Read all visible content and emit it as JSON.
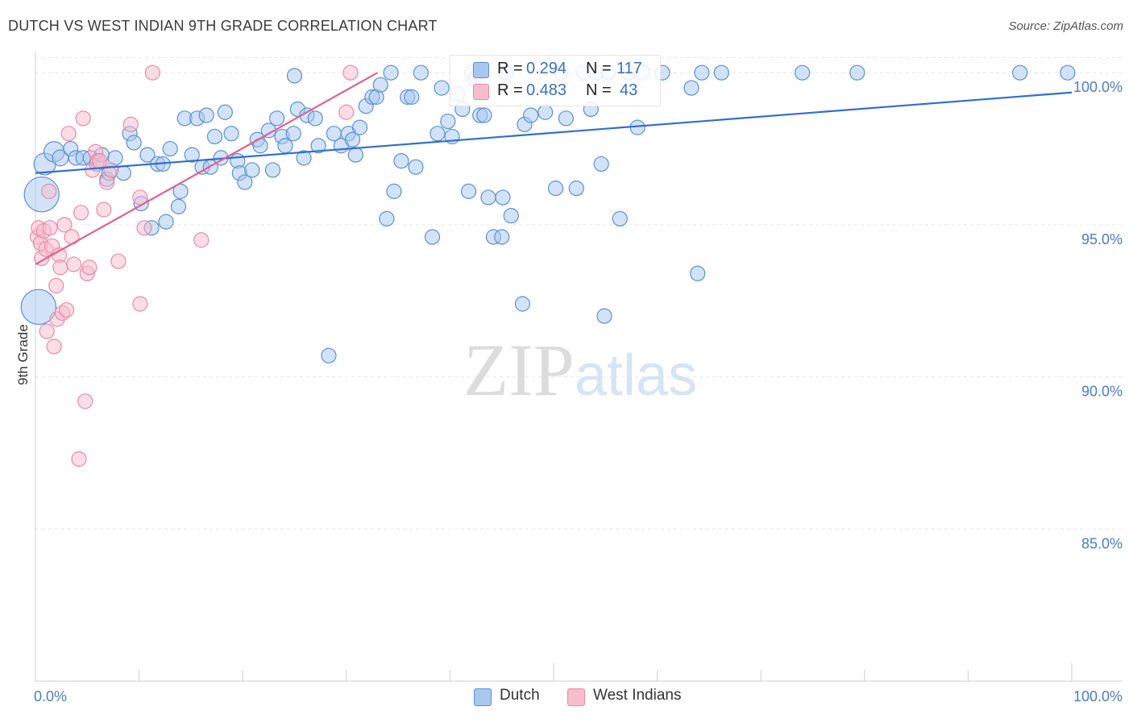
{
  "chart_data": {
    "type": "scatter",
    "title": "DUTCH VS WEST INDIAN 9TH GRADE CORRELATION CHART",
    "source": "Source: ZipAtlas.com",
    "xlabel": "",
    "ylabel": "9th Grade",
    "xlim": [
      0,
      100
    ],
    "ylim": [
      80.0,
      100.8
    ],
    "x_tick_labels": {
      "min": "0.0%",
      "max": "100.0%"
    },
    "y_ticks": [
      {
        "value": 100,
        "label": "100.0%"
      },
      {
        "value": 95,
        "label": "95.0%"
      },
      {
        "value": 90,
        "label": "90.0%"
      },
      {
        "value": 85,
        "label": "85.0%"
      }
    ],
    "grid": true,
    "watermark": "ZIPatlas",
    "legend_stats": [
      {
        "r_label": "R =",
        "r_value": "0.294",
        "n_label": "N =",
        "n_value": "117"
      },
      {
        "r_label": "R =",
        "r_value": "0.483",
        "n_label": "N =",
        "n_value": "43"
      }
    ],
    "series": [
      {
        "name": "Dutch",
        "fill": "#a8c8f0",
        "stroke": "#5b8fd6",
        "line_color": "#2f6fcf",
        "trend": {
          "x": [
            0,
            100
          ],
          "y": [
            96.7,
            99.35
          ]
        },
        "points": [
          [
            0.3,
            92.3,
            2.4
          ],
          [
            0.6,
            96.0,
            2.4
          ],
          [
            0.9,
            97.0,
            1.5
          ],
          [
            1.8,
            97.4,
            1.4
          ],
          [
            2.4,
            97.2,
            1.1
          ],
          [
            3.4,
            97.5,
            1.0
          ],
          [
            3.9,
            97.2,
            1.0
          ],
          [
            4.6,
            97.2,
            1.0
          ],
          [
            5.3,
            97.2,
            1.0
          ],
          [
            5.9,
            97.0,
            1.0
          ],
          [
            6.4,
            97.3,
            1.0
          ],
          [
            6.9,
            96.5,
            1.0
          ],
          [
            7.1,
            96.7,
            1.0
          ],
          [
            7.7,
            97.2,
            1.0
          ],
          [
            8.5,
            96.7,
            1.0
          ],
          [
            9.1,
            98.0,
            1.0
          ],
          [
            9.5,
            97.7,
            1.0
          ],
          [
            10.2,
            95.7,
            1.0
          ],
          [
            10.8,
            97.3,
            1.0
          ],
          [
            11.2,
            94.9,
            1.0
          ],
          [
            11.8,
            97.0,
            1.0
          ],
          [
            12.3,
            97.0,
            1.0
          ],
          [
            12.6,
            95.1,
            1.0
          ],
          [
            13.0,
            97.5,
            1.0
          ],
          [
            13.8,
            95.6,
            1.0
          ],
          [
            14.0,
            96.1,
            1.0
          ],
          [
            14.4,
            98.5,
            1.0
          ],
          [
            15.1,
            97.3,
            1.0
          ],
          [
            15.6,
            98.5,
            1.0
          ],
          [
            16.1,
            96.9,
            1.0
          ],
          [
            16.5,
            98.6,
            1.0
          ],
          [
            16.9,
            96.9,
            1.0
          ],
          [
            17.3,
            97.9,
            1.0
          ],
          [
            17.9,
            97.2,
            1.0
          ],
          [
            18.3,
            98.7,
            1.0
          ],
          [
            18.9,
            98.0,
            1.0
          ],
          [
            19.5,
            97.1,
            1.0
          ],
          [
            19.7,
            96.7,
            1.0
          ],
          [
            20.2,
            96.4,
            1.0
          ],
          [
            20.9,
            96.8,
            1.0
          ],
          [
            21.4,
            97.8,
            1.0
          ],
          [
            21.7,
            97.6,
            1.0
          ],
          [
            22.5,
            98.1,
            1.0
          ],
          [
            22.9,
            96.8,
            1.0
          ],
          [
            23.3,
            98.5,
            1.0
          ],
          [
            23.8,
            97.9,
            1.0
          ],
          [
            24.1,
            97.6,
            1.0
          ],
          [
            24.9,
            98.0,
            1.0
          ],
          [
            25.3,
            98.8,
            1.0
          ],
          [
            25.9,
            97.2,
            1.0
          ],
          [
            26.2,
            98.6,
            1.0
          ],
          [
            27.0,
            98.5,
            1.0
          ],
          [
            27.3,
            97.6,
            1.0
          ],
          [
            28.3,
            90.7,
            1.0
          ],
          [
            28.8,
            98.0,
            1.0
          ],
          [
            29.5,
            97.6,
            1.0
          ],
          [
            30.2,
            98.0,
            1.0
          ],
          [
            30.6,
            97.8,
            1.0
          ],
          [
            30.9,
            97.3,
            1.0
          ],
          [
            31.3,
            98.2,
            1.0
          ],
          [
            25.0,
            99.9,
            1.0
          ],
          [
            31.9,
            98.9,
            1.0
          ],
          [
            32.5,
            99.2,
            1.0
          ],
          [
            32.9,
            99.2,
            1.0
          ],
          [
            33.3,
            99.6,
            1.0
          ],
          [
            33.9,
            95.2,
            1.0
          ],
          [
            34.3,
            100.0,
            1.0
          ],
          [
            34.6,
            96.1,
            1.0
          ],
          [
            35.3,
            97.1,
            1.0
          ],
          [
            35.9,
            99.2,
            1.0
          ],
          [
            36.3,
            99.2,
            1.0
          ],
          [
            36.7,
            96.9,
            1.0
          ],
          [
            37.2,
            100.0,
            1.0
          ],
          [
            38.3,
            94.6,
            1.0
          ],
          [
            38.8,
            98.0,
            1.0
          ],
          [
            39.2,
            99.5,
            1.0
          ],
          [
            39.8,
            98.4,
            1.0
          ],
          [
            40.2,
            97.9,
            1.0
          ],
          [
            40.7,
            99.3,
            1.0
          ],
          [
            41.2,
            98.8,
            1.0
          ],
          [
            41.8,
            96.1,
            1.0
          ],
          [
            42.1,
            100.0,
            1.0
          ],
          [
            42.4,
            99.8,
            1.0
          ],
          [
            42.9,
            98.6,
            1.0
          ],
          [
            43.3,
            98.6,
            1.0
          ],
          [
            43.7,
            95.9,
            1.0
          ],
          [
            44.2,
            94.6,
            1.0
          ],
          [
            45.0,
            94.6,
            1.0
          ],
          [
            45.1,
            95.9,
            1.0
          ],
          [
            45.4,
            100.0,
            1.0
          ],
          [
            45.9,
            95.3,
            1.0
          ],
          [
            47.0,
            92.4,
            1.0
          ],
          [
            47.2,
            98.3,
            1.0
          ],
          [
            47.8,
            98.6,
            1.0
          ],
          [
            49.2,
            98.7,
            1.0
          ],
          [
            50.2,
            96.2,
            1.0
          ],
          [
            50.7,
            100.0,
            1.0
          ],
          [
            51.2,
            98.5,
            1.0
          ],
          [
            52.2,
            96.2,
            1.0
          ],
          [
            52.9,
            100.0,
            1.0
          ],
          [
            53.6,
            98.8,
            1.0
          ],
          [
            54.1,
            100.0,
            1.0
          ],
          [
            54.6,
            97.0,
            1.0
          ],
          [
            54.9,
            92.0,
            1.0
          ],
          [
            56.4,
            95.2,
            1.0
          ],
          [
            57.2,
            100.0,
            1.0
          ],
          [
            58.1,
            98.2,
            1.0
          ],
          [
            58.6,
            100.0,
            1.0
          ],
          [
            60.5,
            100.0,
            1.0
          ],
          [
            63.3,
            99.5,
            1.0
          ],
          [
            63.9,
            93.4,
            1.0
          ],
          [
            64.3,
            100.0,
            1.0
          ],
          [
            66.2,
            100.0,
            1.0
          ],
          [
            74.0,
            100.0,
            1.0
          ],
          [
            79.3,
            100.0,
            1.0
          ],
          [
            95.0,
            100.0,
            1.0
          ],
          [
            99.6,
            100.0,
            1.0
          ],
          [
            55.3,
            100.0,
            1.0
          ]
        ]
      },
      {
        "name": "West Indians",
        "fill": "#f7bccd",
        "stroke": "#e88aa8",
        "line_color": "#e0608e",
        "trend": {
          "x": [
            0,
            33.0
          ],
          "y": [
            93.7,
            100.0
          ]
        },
        "points": [
          [
            0.2,
            94.6,
            1.0
          ],
          [
            0.3,
            94.9,
            1.0
          ],
          [
            0.5,
            94.4,
            1.0
          ],
          [
            0.6,
            93.9,
            1.0
          ],
          [
            0.8,
            94.8,
            1.0
          ],
          [
            1.0,
            94.2,
            1.0
          ],
          [
            1.1,
            91.5,
            1.0
          ],
          [
            1.3,
            96.1,
            1.0
          ],
          [
            1.4,
            94.9,
            1.0
          ],
          [
            1.6,
            94.3,
            1.0
          ],
          [
            1.8,
            91.0,
            1.0
          ],
          [
            2.0,
            93.0,
            1.0
          ],
          [
            2.1,
            91.9,
            1.0
          ],
          [
            2.3,
            94.0,
            1.0
          ],
          [
            2.4,
            93.6,
            1.0
          ],
          [
            2.6,
            92.1,
            1.0
          ],
          [
            2.8,
            95.0,
            1.0
          ],
          [
            3.0,
            92.2,
            1.0
          ],
          [
            3.2,
            98.0,
            1.0
          ],
          [
            3.5,
            94.6,
            1.0
          ],
          [
            3.7,
            93.7,
            1.0
          ],
          [
            4.2,
            87.3,
            1.0
          ],
          [
            4.4,
            95.4,
            1.0
          ],
          [
            4.6,
            98.5,
            1.0
          ],
          [
            4.8,
            89.2,
            1.0
          ],
          [
            5.0,
            93.4,
            1.0
          ],
          [
            5.2,
            93.6,
            1.0
          ],
          [
            5.5,
            96.8,
            1.0
          ],
          [
            5.8,
            97.4,
            1.0
          ],
          [
            6.0,
            97.1,
            1.0
          ],
          [
            6.2,
            97.1,
            1.0
          ],
          [
            6.6,
            95.5,
            1.0
          ],
          [
            6.9,
            96.4,
            1.0
          ],
          [
            7.3,
            96.8,
            1.0
          ],
          [
            8.0,
            93.8,
            1.0
          ],
          [
            9.2,
            98.3,
            1.0
          ],
          [
            10.1,
            95.9,
            1.0
          ],
          [
            10.1,
            92.4,
            1.0
          ],
          [
            10.5,
            94.9,
            1.0
          ],
          [
            11.3,
            100.0,
            1.0
          ],
          [
            16.0,
            94.5,
            1.0
          ],
          [
            30.0,
            98.7,
            1.0
          ],
          [
            30.4,
            100.0,
            1.0
          ]
        ]
      }
    ]
  }
}
